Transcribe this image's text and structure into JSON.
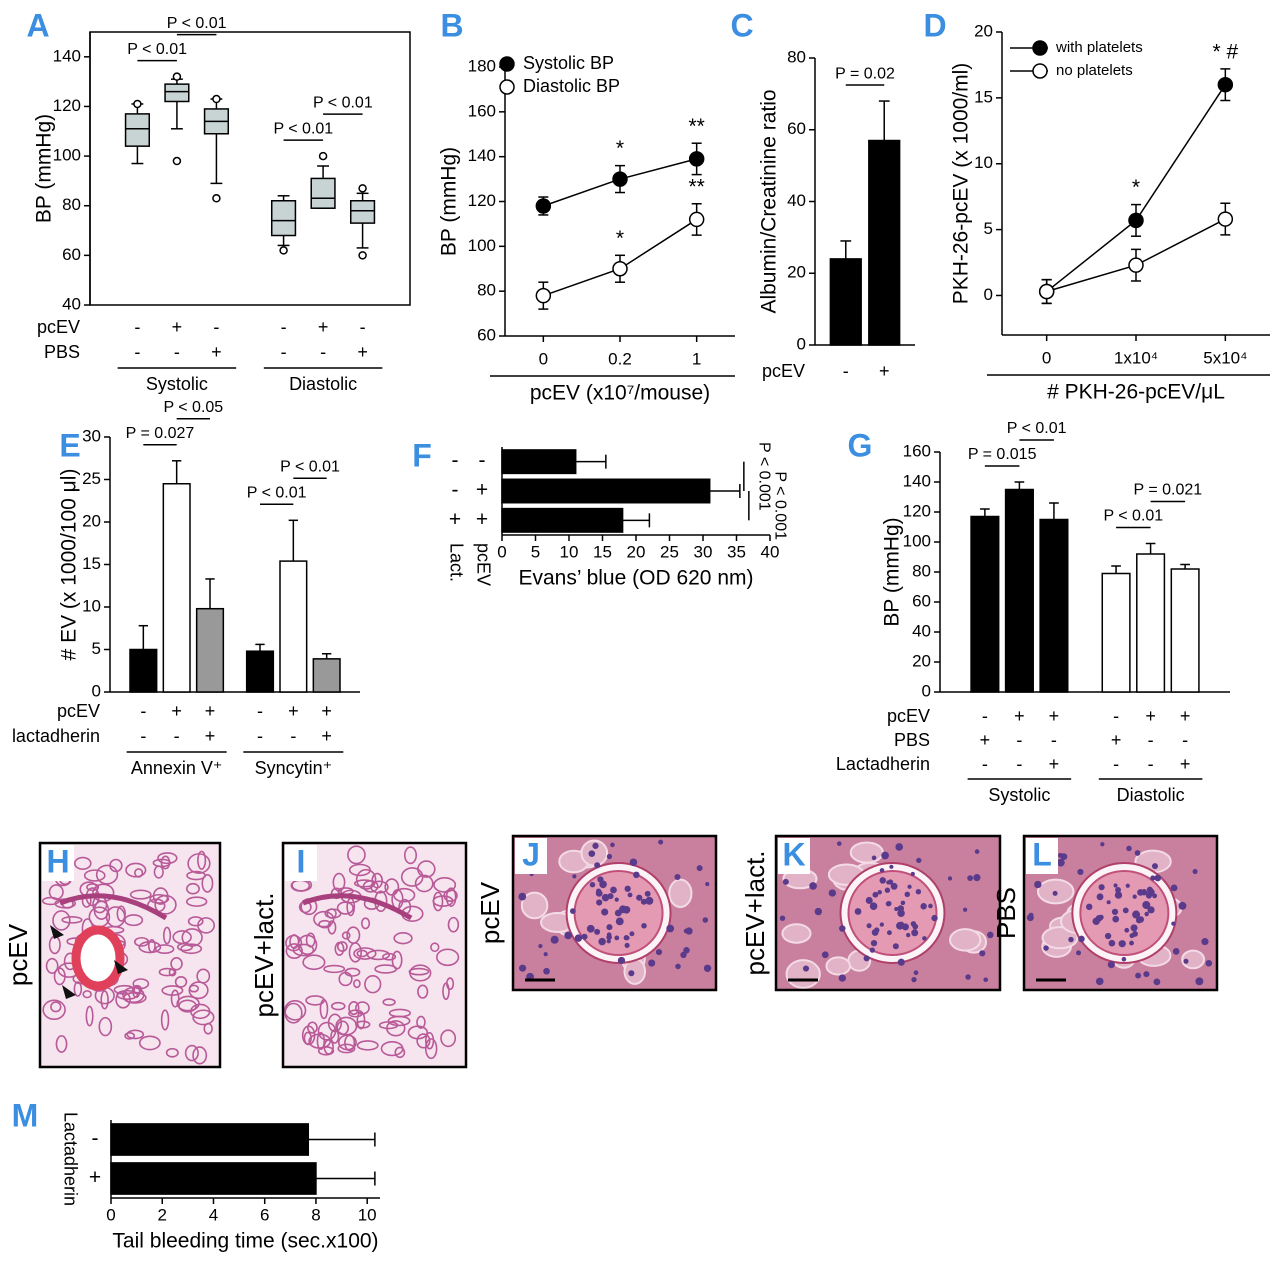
{
  "chart_data": [
    {
      "panel": "A",
      "type": "box",
      "ylabel": "BP (mmHg)",
      "ylim": [
        40,
        150
      ],
      "yticks": [
        40,
        60,
        80,
        100,
        120,
        140
      ],
      "color": "#c8d3d3",
      "boxes": [
        {
          "whislo": 97,
          "q1": 104,
          "med": 111,
          "q3": 117,
          "whishi": 121,
          "fliers": [
            121
          ]
        },
        {
          "whislo": 111,
          "q1": 122,
          "med": 126,
          "q3": 129,
          "whishi": 131,
          "fliers": [
            98,
            132
          ]
        },
        {
          "whislo": 89,
          "q1": 109,
          "med": 114,
          "q3": 119,
          "whishi": 123,
          "fliers": [
            83,
            123
          ]
        },
        {
          "whislo": 64,
          "q1": 68,
          "med": 74,
          "q3": 82,
          "whishi": 84,
          "fliers": [
            62
          ]
        },
        {
          "whislo": 79,
          "q1": 79,
          "med": 83,
          "q3": 91,
          "whishi": 96,
          "fliers": [
            100
          ]
        },
        {
          "whislo": 63,
          "q1": 73,
          "med": 78,
          "q3": 82,
          "whishi": 85,
          "fliers": [
            60,
            87
          ]
        }
      ],
      "rows": [
        {
          "label": "pcEV",
          "signs": [
            "-",
            "+",
            "-",
            "-",
            "+",
            "-"
          ]
        },
        {
          "label": "PBS",
          "signs": [
            "-",
            "-",
            "+",
            "-",
            "-",
            "+"
          ]
        }
      ],
      "groups": [
        "Systolic",
        "Diastolic"
      ],
      "comparisons": [
        {
          "label": "P < 0.01",
          "pair": [
            0,
            1
          ]
        },
        {
          "label": "P < 0.01",
          "pair": [
            1,
            2
          ]
        },
        {
          "label": "P < 0.01",
          "pair": [
            3,
            4
          ]
        },
        {
          "label": "P < 0.01",
          "pair": [
            4,
            5
          ]
        }
      ]
    },
    {
      "panel": "B",
      "type": "line",
      "ylabel": "BP (mmHg)",
      "xlabel": "pcEV (x10⁷/mouse)",
      "categories": [
        "0",
        "0.2",
        "1"
      ],
      "ylim": [
        60,
        180
      ],
      "yticks": [
        60,
        80,
        100,
        120,
        140,
        160,
        180
      ],
      "series": [
        {
          "name": "Systolic BP",
          "color": "#000000",
          "fill": "#000000",
          "values": [
            118,
            130,
            139
          ],
          "errors": [
            4,
            6,
            7
          ],
          "annotations": [
            null,
            "*",
            "**"
          ]
        },
        {
          "name": "Diastolic BP",
          "color": "#000000",
          "fill": "#ffffff",
          "values": [
            78,
            90,
            112
          ],
          "errors": [
            6,
            6,
            7
          ],
          "annotations": [
            null,
            "*",
            "**"
          ]
        }
      ]
    },
    {
      "panel": "C",
      "type": "bar",
      "ylabel": "Albumin/Creatinine ratio",
      "ylim": [
        0,
        80
      ],
      "yticks": [
        0,
        20,
        40,
        60,
        80
      ],
      "values": [
        24,
        57
      ],
      "errors": [
        5,
        11
      ],
      "colors": [
        "#000000",
        "#000000"
      ],
      "rows": [
        {
          "label": "pcEV",
          "signs": [
            "-",
            "+"
          ]
        }
      ],
      "comparisons": [
        {
          "label": "P = 0.02",
          "pair": [
            0,
            1
          ]
        }
      ]
    },
    {
      "panel": "D",
      "type": "line",
      "ylabel": "PKH-26-pcEV (x 1000/ml)",
      "xlabel": "# PKH-26-pcEV/μL",
      "categories": [
        "0",
        "1x10⁴",
        "5x10⁴"
      ],
      "ylim": [
        -3,
        20
      ],
      "yticks": [
        0,
        5,
        10,
        15,
        20
      ],
      "series": [
        {
          "name": "with platelets",
          "color": "#000000",
          "fill": "#000000",
          "values": [
            0.3,
            5.7,
            16
          ],
          "errors": [
            0.9,
            1.2,
            1.2
          ],
          "annotations": [
            null,
            "*",
            "* #"
          ]
        },
        {
          "name": "no platelets",
          "color": "#000000",
          "fill": "#ffffff",
          "values": [
            0.3,
            2.3,
            5.8
          ],
          "errors": [
            0.9,
            1.2,
            1.2
          ],
          "annotations": [
            null,
            null,
            null
          ]
        }
      ]
    },
    {
      "panel": "E",
      "type": "bar",
      "ylabel": "# EV (x 1000/100 μl)",
      "ylim": [
        0,
        30
      ],
      "yticks": [
        0,
        5,
        10,
        15,
        20,
        25,
        30
      ],
      "values": [
        5,
        24.5,
        9.8,
        4.8,
        15.4,
        3.9
      ],
      "errors": [
        2.8,
        2.7,
        3.5,
        0.8,
        4.8,
        0.6
      ],
      "colors": [
        "#000000",
        "#ffffff",
        "#999999",
        "#000000",
        "#ffffff",
        "#999999"
      ],
      "rows": [
        {
          "label": "pcEV",
          "signs": [
            "-",
            "+",
            "+",
            "-",
            "+",
            "+"
          ]
        },
        {
          "label": "lactadherin",
          "signs": [
            "-",
            "-",
            "+",
            "-",
            "-",
            "+"
          ]
        }
      ],
      "groups": [
        "Annexin V⁺",
        "Syncytin⁺"
      ],
      "comparisons": [
        {
          "label": "P = 0.027",
          "pair": [
            0,
            1
          ]
        },
        {
          "label": "P < 0.05",
          "pair": [
            1,
            2
          ]
        },
        {
          "label": "P < 0.01",
          "pair": [
            3,
            4
          ]
        },
        {
          "label": "P < 0.01",
          "pair": [
            4,
            5
          ]
        }
      ]
    },
    {
      "panel": "F",
      "type": "barh",
      "xlabel": "Evans’ blue (OD 620 nm)",
      "xlim": [
        0,
        40
      ],
      "xticks": [
        0,
        5,
        10,
        15,
        20,
        25,
        30,
        35,
        40
      ],
      "values": [
        11,
        31,
        18
      ],
      "errors": [
        4.5,
        4.5,
        4
      ],
      "color": "#000000",
      "rows": [
        {
          "label": "pcEV",
          "signs": [
            "-",
            "+",
            "+"
          ]
        },
        {
          "label": "Lact.",
          "signs": [
            "-",
            "-",
            "+"
          ]
        }
      ],
      "comparisons": [
        {
          "label": "P < 0.001",
          "pair": [
            0,
            1
          ]
        },
        {
          "label": "P < 0.001",
          "pair": [
            1,
            2
          ]
        }
      ]
    },
    {
      "panel": "G",
      "type": "bar",
      "ylabel": "BP (mmHg)",
      "ylim": [
        0,
        160
      ],
      "yticks": [
        0,
        20,
        40,
        60,
        80,
        100,
        120,
        140,
        160
      ],
      "values": [
        117,
        135,
        115,
        79,
        92,
        82
      ],
      "errors": [
        5,
        5,
        11,
        5,
        7,
        3
      ],
      "colors": [
        "#000000",
        "#000000",
        "#000000",
        "#ffffff",
        "#ffffff",
        "#ffffff"
      ],
      "rows": [
        {
          "label": "pcEV",
          "signs": [
            "-",
            "+",
            "+",
            "-",
            "+",
            "+"
          ]
        },
        {
          "label": "PBS",
          "signs": [
            "+",
            "-",
            "-",
            "+",
            "-",
            "-"
          ]
        },
        {
          "label": "Lactadherin",
          "signs": [
            "-",
            "-",
            "+",
            "-",
            "-",
            "+"
          ]
        }
      ],
      "groups": [
        "Systolic",
        "Diastolic"
      ],
      "comparisons": [
        {
          "label": "P = 0.015",
          "pair": [
            0,
            1
          ]
        },
        {
          "label": "P < 0.01",
          "pair": [
            1,
            2
          ]
        },
        {
          "label": "P < 0.01",
          "pair": [
            3,
            4
          ]
        },
        {
          "label": "P = 0.021",
          "pair": [
            4,
            5
          ]
        }
      ]
    },
    {
      "panel": "M",
      "type": "barh",
      "xlabel": "Tail bleeding time (sec.x100)",
      "xlim": [
        0,
        10.5
      ],
      "xticks": [
        0,
        2,
        4,
        6,
        8,
        10
      ],
      "values": [
        7.7,
        8.0
      ],
      "errors": [
        2.6,
        2.3
      ],
      "color": "#000000",
      "rows": [
        {
          "label": "Lactadherin",
          "signs": [
            "-",
            "+"
          ]
        }
      ]
    }
  ],
  "micrographs": [
    {
      "panel": "H",
      "label": "pcEV"
    },
    {
      "panel": "I",
      "label": "pcEV+lact."
    },
    {
      "panel": "J",
      "label": "pcEV"
    },
    {
      "panel": "K",
      "label": "pcEV+lact."
    },
    {
      "panel": "L",
      "label": "PBS"
    }
  ]
}
